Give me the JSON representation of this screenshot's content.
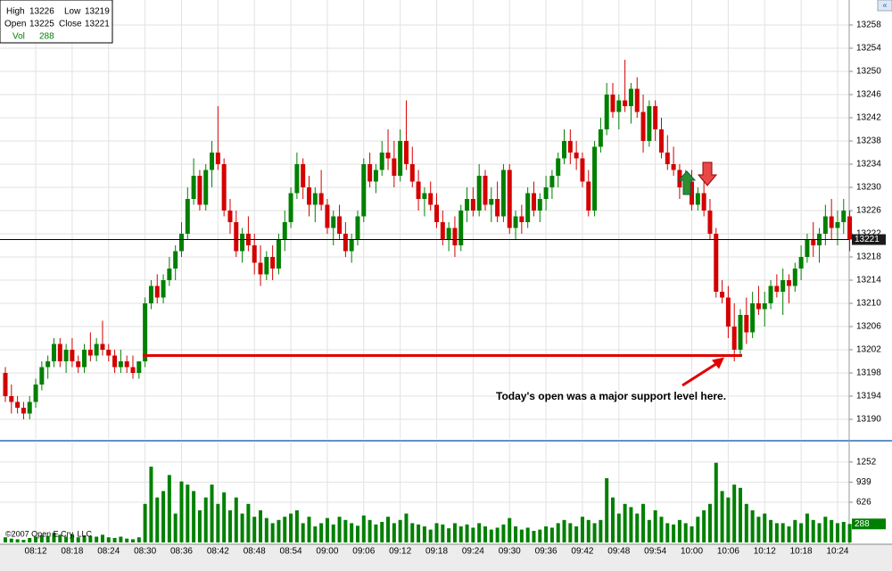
{
  "chart_data": {
    "type": "candlestick",
    "x": [
      "08:07",
      "08:08",
      "08:09",
      "08:10",
      "08:11",
      "08:12",
      "08:13",
      "08:14",
      "08:15",
      "08:16",
      "08:17",
      "08:18",
      "08:19",
      "08:20",
      "08:21",
      "08:22",
      "08:23",
      "08:24",
      "08:25",
      "08:26",
      "08:27",
      "08:28",
      "08:29",
      "08:30",
      "08:31",
      "08:32",
      "08:33",
      "08:34",
      "08:35",
      "08:36",
      "08:37",
      "08:38",
      "08:39",
      "08:40",
      "08:41",
      "08:42",
      "08:43",
      "08:44",
      "08:45",
      "08:46",
      "08:47",
      "08:48",
      "08:49",
      "08:50",
      "08:51",
      "08:52",
      "08:53",
      "08:54",
      "08:55",
      "08:56",
      "08:57",
      "08:58",
      "08:59",
      "09:00",
      "09:01",
      "09:02",
      "09:03",
      "09:04",
      "09:05",
      "09:06",
      "09:07",
      "09:08",
      "09:09",
      "09:10",
      "09:11",
      "09:12",
      "09:13",
      "09:14",
      "09:15",
      "09:16",
      "09:17",
      "09:18",
      "09:19",
      "09:20",
      "09:21",
      "09:22",
      "09:23",
      "09:24",
      "09:25",
      "09:26",
      "09:27",
      "09:28",
      "09:29",
      "09:30",
      "09:31",
      "09:32",
      "09:33",
      "09:34",
      "09:35",
      "09:36",
      "09:37",
      "09:38",
      "09:39",
      "09:40",
      "09:41",
      "09:42",
      "09:43",
      "09:44",
      "09:45",
      "09:46",
      "09:47",
      "09:48",
      "09:49",
      "09:50",
      "09:51",
      "09:52",
      "09:53",
      "09:54",
      "09:55",
      "09:56",
      "09:57",
      "09:58",
      "09:59",
      "10:00",
      "10:01",
      "10:02",
      "10:03",
      "10:04",
      "10:05",
      "10:06",
      "10:07",
      "10:08",
      "10:09",
      "10:10",
      "10:11",
      "10:12",
      "10:13",
      "10:14",
      "10:15",
      "10:16",
      "10:17",
      "10:18",
      "10:19",
      "10:20",
      "10:21",
      "10:22",
      "10:23",
      "10:24",
      "10:25",
      "10:26"
    ],
    "open": [
      13198,
      13194,
      13193,
      13192,
      13191,
      13193,
      13196,
      13199,
      13200,
      13203,
      13200,
      13202,
      13200,
      13199,
      13202,
      13201,
      13203,
      13202,
      13201,
      13199,
      13200,
      13199,
      13198,
      13200,
      13210,
      13213,
      13211,
      13214,
      13216,
      13219,
      13222,
      13228,
      13232,
      13227,
      13233,
      13236,
      13234,
      13226,
      13224,
      13219,
      13222,
      13220,
      13217,
      13215,
      13218,
      13216,
      13221,
      13224,
      13229,
      13234,
      13230,
      13227,
      13229,
      13227,
      13223,
      13225,
      13222,
      13219,
      13221,
      13225,
      13234,
      13231,
      13233,
      13236,
      13235,
      13232,
      13238,
      13234,
      13231,
      13228,
      13229,
      13227,
      13224,
      13221,
      13223,
      13220,
      13226,
      13228,
      13226,
      13232,
      13227,
      13228,
      13225,
      13233,
      13223,
      13225,
      13224,
      13229,
      13226,
      13228,
      13230,
      13232,
      13235,
      13238,
      13236,
      13235,
      13231,
      13226,
      13237,
      13240,
      13246,
      13243,
      13245,
      13244,
      13247,
      13243,
      13238,
      13244,
      13240,
      13236,
      13234,
      13233,
      13230,
      13231,
      13227,
      13229,
      13226,
      13222,
      13212,
      13211,
      13206,
      13202,
      13208,
      13205,
      13210,
      13209,
      13210,
      13213,
      13212,
      13214,
      13213,
      13216,
      13218,
      13221,
      13220,
      13222,
      13225,
      13223,
      13224,
      13225
    ],
    "high": [
      13199,
      13196,
      13194,
      13193,
      13194,
      13197,
      13200,
      13201,
      13204,
      13204,
      13203,
      13204,
      13201,
      13203,
      13205,
      13204,
      13207,
      13203,
      13202,
      13202,
      13201,
      13201,
      13200,
      13211,
      13214,
      13215,
      13215,
      13218,
      13220,
      13224,
      13230,
      13235,
      13233,
      13234,
      13238,
      13244,
      13235,
      13228,
      13226,
      13223,
      13225,
      13222,
      13220,
      13219,
      13220,
      13222,
      13226,
      13230,
      13236,
      13235,
      13232,
      13230,
      13233,
      13228,
      13226,
      13227,
      13224,
      13222,
      13226,
      13235,
      13236,
      13234,
      13238,
      13240,
      13238,
      13240,
      13245,
      13237,
      13233,
      13230,
      13231,
      13229,
      13226,
      13224,
      13225,
      13227,
      13230,
      13230,
      13234,
      13233,
      13230,
      13231,
      13234,
      13234,
      13226,
      13227,
      13230,
      13231,
      13229,
      13232,
      13233,
      13236,
      13240,
      13240,
      13238,
      13236,
      13233,
      13238,
      13242,
      13248,
      13248,
      13246,
      13252,
      13248,
      13249,
      13246,
      13245,
      13245,
      13242,
      13239,
      13237,
      13234,
      13233,
      13233,
      13230,
      13234,
      13228,
      13223,
      13214,
      13213,
      13210,
      13209,
      13211,
      13212,
      13213,
      13212,
      13214,
      13215,
      13216,
      13215,
      13217,
      13220,
      13222,
      13224,
      13223,
      13227,
      13228,
      13226,
      13228,
      13226
    ],
    "low": [
      13193,
      13191,
      13191,
      13190,
      13190,
      13192,
      13195,
      13197,
      13199,
      13199,
      13198,
      13199,
      13198,
      13198,
      13200,
      13200,
      13201,
      13200,
      13198,
      13198,
      13198,
      13197,
      13197,
      13199,
      13209,
      13210,
      13210,
      13213,
      13214,
      13218,
      13221,
      13227,
      13226,
      13226,
      13230,
      13233,
      13225,
      13222,
      13218,
      13217,
      13219,
      13215,
      13213,
      13214,
      13214,
      13215,
      13219,
      13223,
      13228,
      13228,
      13225,
      13224,
      13226,
      13222,
      13220,
      13221,
      13218,
      13217,
      13220,
      13224,
      13230,
      13229,
      13232,
      13233,
      13230,
      13231,
      13233,
      13230,
      13226,
      13225,
      13226,
      13223,
      13220,
      13219,
      13218,
      13219,
      13224,
      13225,
      13225,
      13226,
      13224,
      13224,
      13224,
      13222,
      13221,
      13222,
      13223,
      13225,
      13224,
      13226,
      13228,
      13230,
      13234,
      13234,
      13233,
      13230,
      13225,
      13225,
      13236,
      13239,
      13242,
      13240,
      13243,
      13241,
      13242,
      13236,
      13237,
      13238,
      13235,
      13233,
      13232,
      13228,
      13229,
      13226,
      13226,
      13225,
      13221,
      13211,
      13210,
      13204,
      13200,
      13201,
      13203,
      13204,
      13208,
      13206,
      13209,
      13211,
      13208,
      13210,
      13212,
      13214,
      13217,
      13218,
      13217,
      13220,
      13221,
      13220,
      13222,
      13219
    ],
    "close": [
      13194,
      13193,
      13192,
      13191,
      13193,
      13196,
      13199,
      13200,
      13203,
      13200,
      13202,
      13200,
      13199,
      13202,
      13201,
      13203,
      13202,
      13201,
      13199,
      13200,
      13199,
      13198,
      13200,
      13210,
      13213,
      13211,
      13214,
      13216,
      13219,
      13222,
      13228,
      13232,
      13227,
      13233,
      13236,
      13234,
      13226,
      13224,
      13219,
      13222,
      13220,
      13217,
      13215,
      13218,
      13216,
      13221,
      13224,
      13229,
      13234,
      13230,
      13227,
      13229,
      13227,
      13223,
      13225,
      13222,
      13219,
      13221,
      13225,
      13234,
      13231,
      13233,
      13236,
      13235,
      13232,
      13238,
      13234,
      13231,
      13228,
      13229,
      13227,
      13224,
      13221,
      13223,
      13220,
      13226,
      13228,
      13226,
      13232,
      13227,
      13228,
      13225,
      13233,
      13223,
      13225,
      13224,
      13229,
      13226,
      13228,
      13230,
      13232,
      13235,
      13238,
      13236,
      13235,
      13231,
      13226,
      13237,
      13240,
      13246,
      13243,
      13245,
      13244,
      13247,
      13243,
      13238,
      13244,
      13240,
      13236,
      13234,
      13233,
      13230,
      13231,
      13227,
      13229,
      13226,
      13222,
      13212,
      13211,
      13206,
      13202,
      13208,
      13205,
      13210,
      13209,
      13210,
      13213,
      13212,
      13214,
      13213,
      13216,
      13218,
      13221,
      13220,
      13222,
      13225,
      13223,
      13224,
      13226,
      13221
    ],
    "volume": [
      80,
      60,
      50,
      40,
      70,
      90,
      110,
      100,
      150,
      120,
      90,
      130,
      80,
      110,
      100,
      90,
      120,
      80,
      70,
      90,
      60,
      50,
      80,
      600,
      1180,
      700,
      800,
      1050,
      450,
      950,
      900,
      800,
      500,
      700,
      900,
      600,
      780,
      500,
      700,
      450,
      600,
      400,
      500,
      380,
      300,
      350,
      400,
      450,
      500,
      300,
      400,
      250,
      300,
      380,
      280,
      400,
      350,
      300,
      260,
      420,
      350,
      280,
      320,
      400,
      300,
      350,
      450,
      300,
      280,
      250,
      200,
      300,
      280,
      220,
      300,
      250,
      280,
      230,
      300,
      250,
      200,
      230,
      280,
      380,
      250,
      200,
      230,
      180,
      200,
      250,
      230,
      300,
      350,
      300,
      250,
      400,
      350,
      300,
      350,
      1000,
      700,
      450,
      600,
      550,
      450,
      600,
      350,
      500,
      400,
      300,
      280,
      350,
      300,
      250,
      400,
      500,
      600,
      1240,
      800,
      700,
      900,
      850,
      600,
      500,
      400,
      450,
      350,
      300,
      300,
      250,
      350,
      300,
      450,
      350,
      300,
      400,
      350,
      300,
      320,
      288
    ],
    "up_color": "#008000",
    "down_color": "#d40000",
    "volume_color": "#008000",
    "ylim": [
      13187,
      13262
    ],
    "yticks": [
      13190,
      13194,
      13198,
      13202,
      13206,
      13210,
      13214,
      13218,
      13222,
      13226,
      13230,
      13234,
      13238,
      13242,
      13246,
      13250,
      13254,
      13258
    ],
    "volume_ylim": [
      0,
      1500
    ],
    "volume_yticks": [
      626,
      939,
      1252
    ],
    "xticks": [
      "08:12",
      "08:18",
      "08:24",
      "08:30",
      "08:36",
      "08:42",
      "08:48",
      "08:54",
      "09:00",
      "09:06",
      "09:12",
      "09:18",
      "09:24",
      "09:30",
      "09:36",
      "09:42",
      "09:48",
      "09:54",
      "10:00",
      "10:06",
      "10:12",
      "10:18",
      "10:24"
    ],
    "grid": true,
    "info": {
      "high_label": "High",
      "high": 13226,
      "low_label": "Low",
      "low": 13219,
      "open_label": "Open",
      "open": 13225,
      "close_label": "Close",
      "close": 13221,
      "vol_label": "Vol",
      "vol": 288
    },
    "support_level": 13201,
    "annotation": "Today's open was a major support level here.",
    "copyright": "©2007 Open E Cry, LLC"
  }
}
